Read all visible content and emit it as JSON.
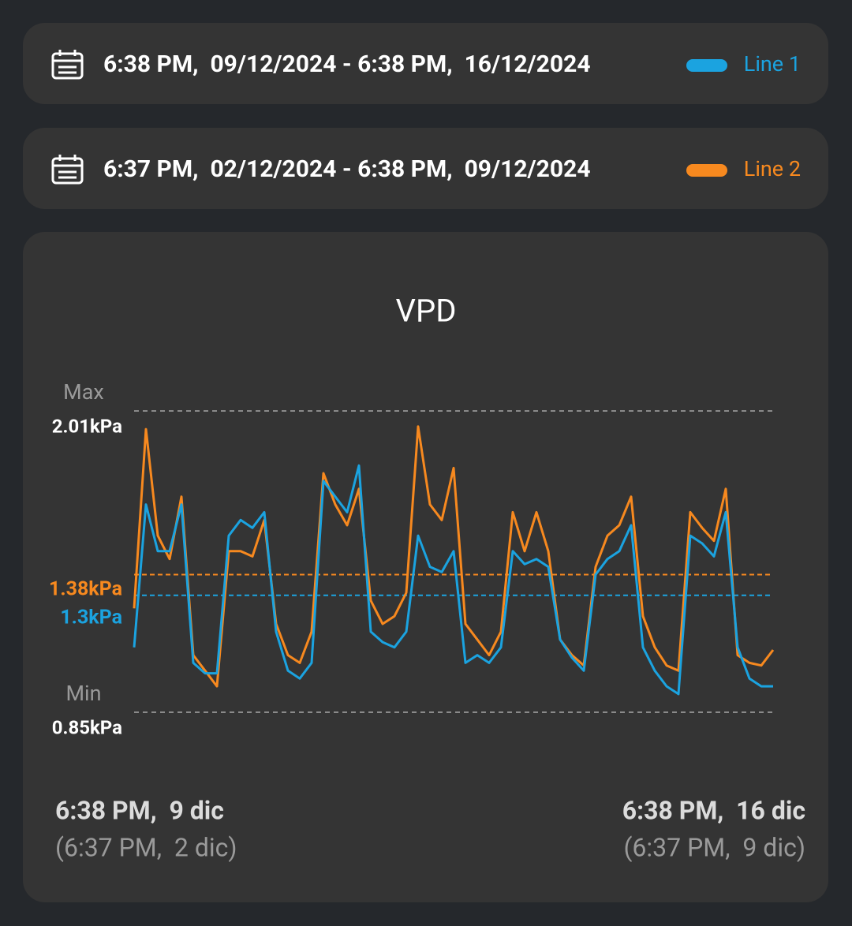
{
  "ranges": [
    {
      "text": "6:38 PM,  09/12/2024 - 6:38 PM,  16/12/2024"
    },
    {
      "text": "6:37 PM,  02/12/2024 - 6:38 PM,  09/12/2024"
    }
  ],
  "chart_data": {
    "type": "line",
    "title": "VPD",
    "max_label": "Max",
    "min_label": "Min",
    "ylim": [
      0.85,
      2.01
    ],
    "yticks": [
      {
        "value": 2.01,
        "label": "2.01kPa"
      },
      {
        "value": 0.85,
        "label": "0.85kPa"
      }
    ],
    "x_start": {
      "time": "6:38 PM,  9 dic",
      "compare": "(6:37 PM,  2 dic)"
    },
    "x_end": {
      "time": "6:38 PM,  16 dic",
      "compare": "(6:37 PM,  9 dic)"
    },
    "series": [
      {
        "name": "Line 1",
        "color": "#1ba3e0",
        "mean": {
          "value": 1.3,
          "label": "1.3kPa"
        },
        "values": [
          1.1,
          1.65,
          1.47,
          1.47,
          1.65,
          1.04,
          1.0,
          1.0,
          1.53,
          1.59,
          1.56,
          1.62,
          1.16,
          1.01,
          0.98,
          1.04,
          1.74,
          1.68,
          1.62,
          1.8,
          1.16,
          1.12,
          1.1,
          1.16,
          1.53,
          1.41,
          1.39,
          1.47,
          1.04,
          1.07,
          1.04,
          1.1,
          1.47,
          1.42,
          1.44,
          1.41,
          1.13,
          1.06,
          1.01,
          1.38,
          1.44,
          1.47,
          1.57,
          1.1,
          1.01,
          0.95,
          0.92,
          1.53,
          1.5,
          1.45,
          1.62,
          1.1,
          0.98,
          0.95,
          0.95
        ]
      },
      {
        "name": "Line 2",
        "color": "#f7891f",
        "mean": {
          "value": 1.38,
          "label": "1.38kPa"
        },
        "values": [
          1.25,
          1.94,
          1.53,
          1.44,
          1.68,
          1.07,
          1.01,
          0.95,
          1.47,
          1.47,
          1.45,
          1.59,
          1.19,
          1.07,
          1.04,
          1.16,
          1.77,
          1.65,
          1.57,
          1.71,
          1.28,
          1.19,
          1.22,
          1.31,
          1.95,
          1.65,
          1.59,
          1.79,
          1.19,
          1.13,
          1.07,
          1.16,
          1.62,
          1.47,
          1.62,
          1.47,
          1.13,
          1.07,
          1.03,
          1.41,
          1.53,
          1.57,
          1.68,
          1.22,
          1.1,
          1.03,
          1.01,
          1.62,
          1.56,
          1.51,
          1.71,
          1.07,
          1.04,
          1.03,
          1.09
        ]
      }
    ]
  }
}
